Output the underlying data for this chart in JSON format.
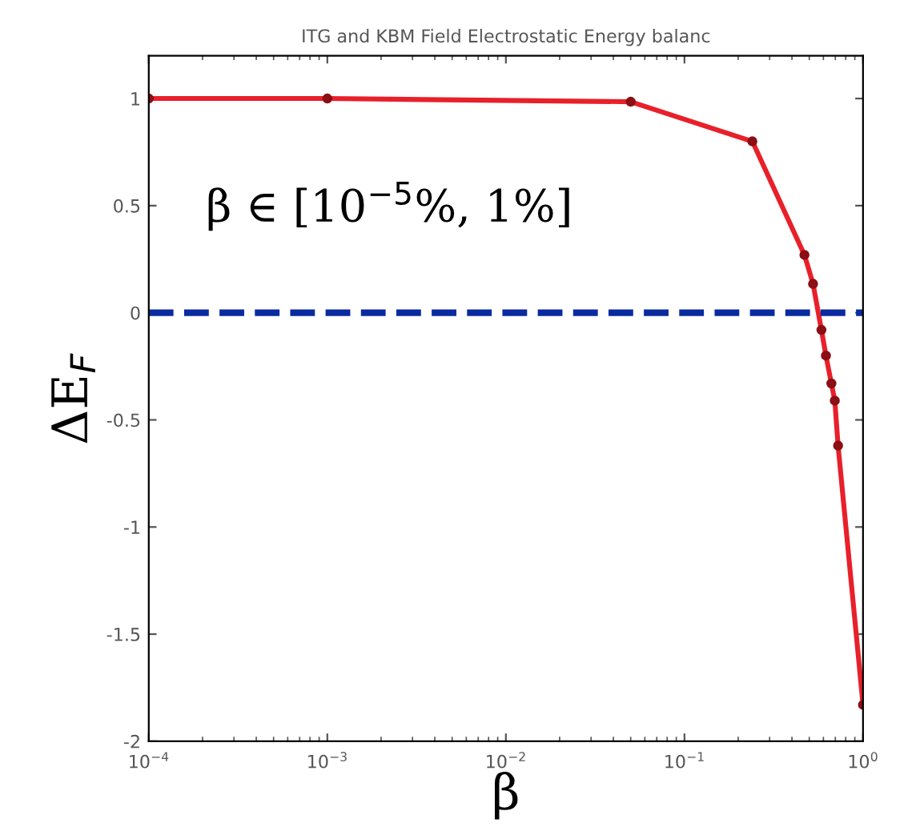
{
  "chart_data": {
    "type": "line",
    "title": "ITG and KBM Field Electrostatic Energy balanc",
    "xlabel": "β",
    "ylabel": "ΔE$_{F}$",
    "x": [
      0.0001,
      0.001,
      0.05,
      0.24,
      0.47,
      0.525,
      0.585,
      0.62,
      0.665,
      0.695,
      0.725,
      1.0
    ],
    "series": [
      {
        "color": "#e8202a",
        "values": [
          1,
          1,
          0.985,
          0.8,
          0.27,
          0.135,
          -0.08,
          -0.2,
          -0.33,
          -0.41,
          -0.62,
          -1.83
        ]
      }
    ],
    "marker": "circle",
    "line_style": "solid",
    "log": "x",
    "xlim": [
      0.0001,
      1
    ],
    "xticks": [
      {
        "value": 0.0001,
        "label": "10$^{−4}$"
      },
      {
        "value": 0.001,
        "label": "10$^{−3}$"
      },
      {
        "value": 0.01,
        "label": "10$^{−2}$"
      },
      {
        "value": 0.1,
        "label": "10$^{−1}$"
      },
      {
        "value": 1,
        "label": "10$^{0}$"
      }
    ],
    "ylim": [
      -2,
      1.2
    ],
    "yticks": [
      -2,
      -1.5,
      -1,
      -0.5,
      0,
      0.5,
      1
    ],
    "ref_lines": [
      {
        "axis": "y",
        "value": 0,
        "color": "#0a2aa0",
        "line_style": "dashed"
      }
    ],
    "annotations": [
      "β ∈ [10$^{−5}$%, 1%]"
    ],
    "grid": false,
    "legend": false
  }
}
